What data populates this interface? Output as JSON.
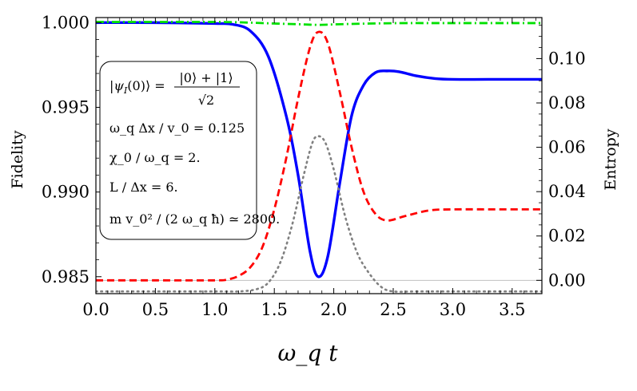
{
  "chart_data": {
    "type": "line",
    "xlabel": "ω_q t",
    "ylabel_left": "Fidelity",
    "ylabel_right": "Entropy",
    "xlim": [
      0,
      3.75
    ],
    "ylim_left": [
      0.984,
      1.0003
    ],
    "ylim_right": [
      -0.006,
      0.1185
    ],
    "x_ticks": [
      "0.0",
      "0.5",
      "1.0",
      "1.5",
      "2.0",
      "2.5",
      "3.0",
      "3.5"
    ],
    "y_left_ticks": [
      "0.985",
      "0.990",
      "0.995",
      "1.000"
    ],
    "y_right_ticks": [
      "0.00",
      "0.02",
      "0.04",
      "0.06",
      "0.08",
      "0.10"
    ],
    "grid": false,
    "series": [
      {
        "axis": "left",
        "color": "#0000ff",
        "style": "solid",
        "x": [
          0.0,
          0.5,
          1.0,
          1.15,
          1.3,
          1.45,
          1.6,
          1.7,
          1.8,
          1.87,
          1.95,
          2.05,
          2.15,
          2.25,
          2.35,
          2.45,
          2.55,
          2.7,
          2.85,
          3.0,
          3.3,
          3.75
        ],
        "y": [
          1.0,
          1.0,
          0.99995,
          0.9999,
          0.9995,
          0.998,
          0.9945,
          0.991,
          0.9865,
          0.985,
          0.9862,
          0.9905,
          0.9945,
          0.9963,
          0.99705,
          0.99715,
          0.9971,
          0.99685,
          0.9967,
          0.99665,
          0.99665,
          0.99665
        ]
      },
      {
        "axis": "right",
        "color": "#ff0000",
        "style": "dashed",
        "x": [
          0.0,
          0.5,
          1.0,
          1.1,
          1.2,
          1.3,
          1.4,
          1.5,
          1.6,
          1.7,
          1.8,
          1.87,
          1.95,
          2.05,
          2.15,
          2.25,
          2.35,
          2.45,
          2.6,
          2.8,
          3.0,
          3.4,
          3.75
        ],
        "y": [
          0.0,
          0.0,
          0.0,
          0.0003,
          0.002,
          0.006,
          0.015,
          0.032,
          0.055,
          0.082,
          0.105,
          0.112,
          0.107,
          0.085,
          0.06,
          0.04,
          0.03,
          0.027,
          0.029,
          0.0315,
          0.032,
          0.032,
          0.032
        ]
      },
      {
        "axis": "right",
        "color": "#00e000",
        "style": "dashdot",
        "x": [
          0.0,
          1.0,
          1.3,
          1.5,
          1.7,
          1.87,
          2.05,
          2.3,
          2.6,
          3.0,
          3.75
        ],
        "y": [
          0.1165,
          0.1165,
          0.1162,
          0.1158,
          0.1155,
          0.1152,
          0.1155,
          0.1158,
          0.116,
          0.116,
          0.116
        ]
      },
      {
        "axis": "right",
        "color": "#808080",
        "style": "dotted",
        "x": [
          0.0,
          1.0,
          1.2,
          1.35,
          1.45,
          1.55,
          1.65,
          1.75,
          1.82,
          1.87,
          1.93,
          2.0,
          2.1,
          2.2,
          2.3,
          2.4,
          2.5,
          2.7,
          3.0,
          3.75
        ],
        "y": [
          -0.005,
          -0.005,
          -0.005,
          -0.004,
          -0.001,
          0.008,
          0.025,
          0.048,
          0.062,
          0.065,
          0.062,
          0.05,
          0.028,
          0.012,
          0.003,
          -0.003,
          -0.005,
          -0.005,
          -0.005,
          -0.005
        ]
      }
    ],
    "reference_lines": [
      {
        "axis": "right",
        "y": 0.0,
        "color": "#c0c0c0"
      }
    ],
    "annotation_box": {
      "line1_lhs": "|ψ",
      "line1_sub": "I",
      "line1_mid": "(0)⟩ =",
      "line1_num": "|0⟩ + |1⟩",
      "line1_den": "√2",
      "line2": "ω_q Δx / v_0 = 0.125",
      "line3": "χ_0 / ω_q = 2.",
      "line4": "L / Δx = 6.",
      "line5": "m v_0² / (2 ω_q ħ) ≃ 2800."
    }
  }
}
